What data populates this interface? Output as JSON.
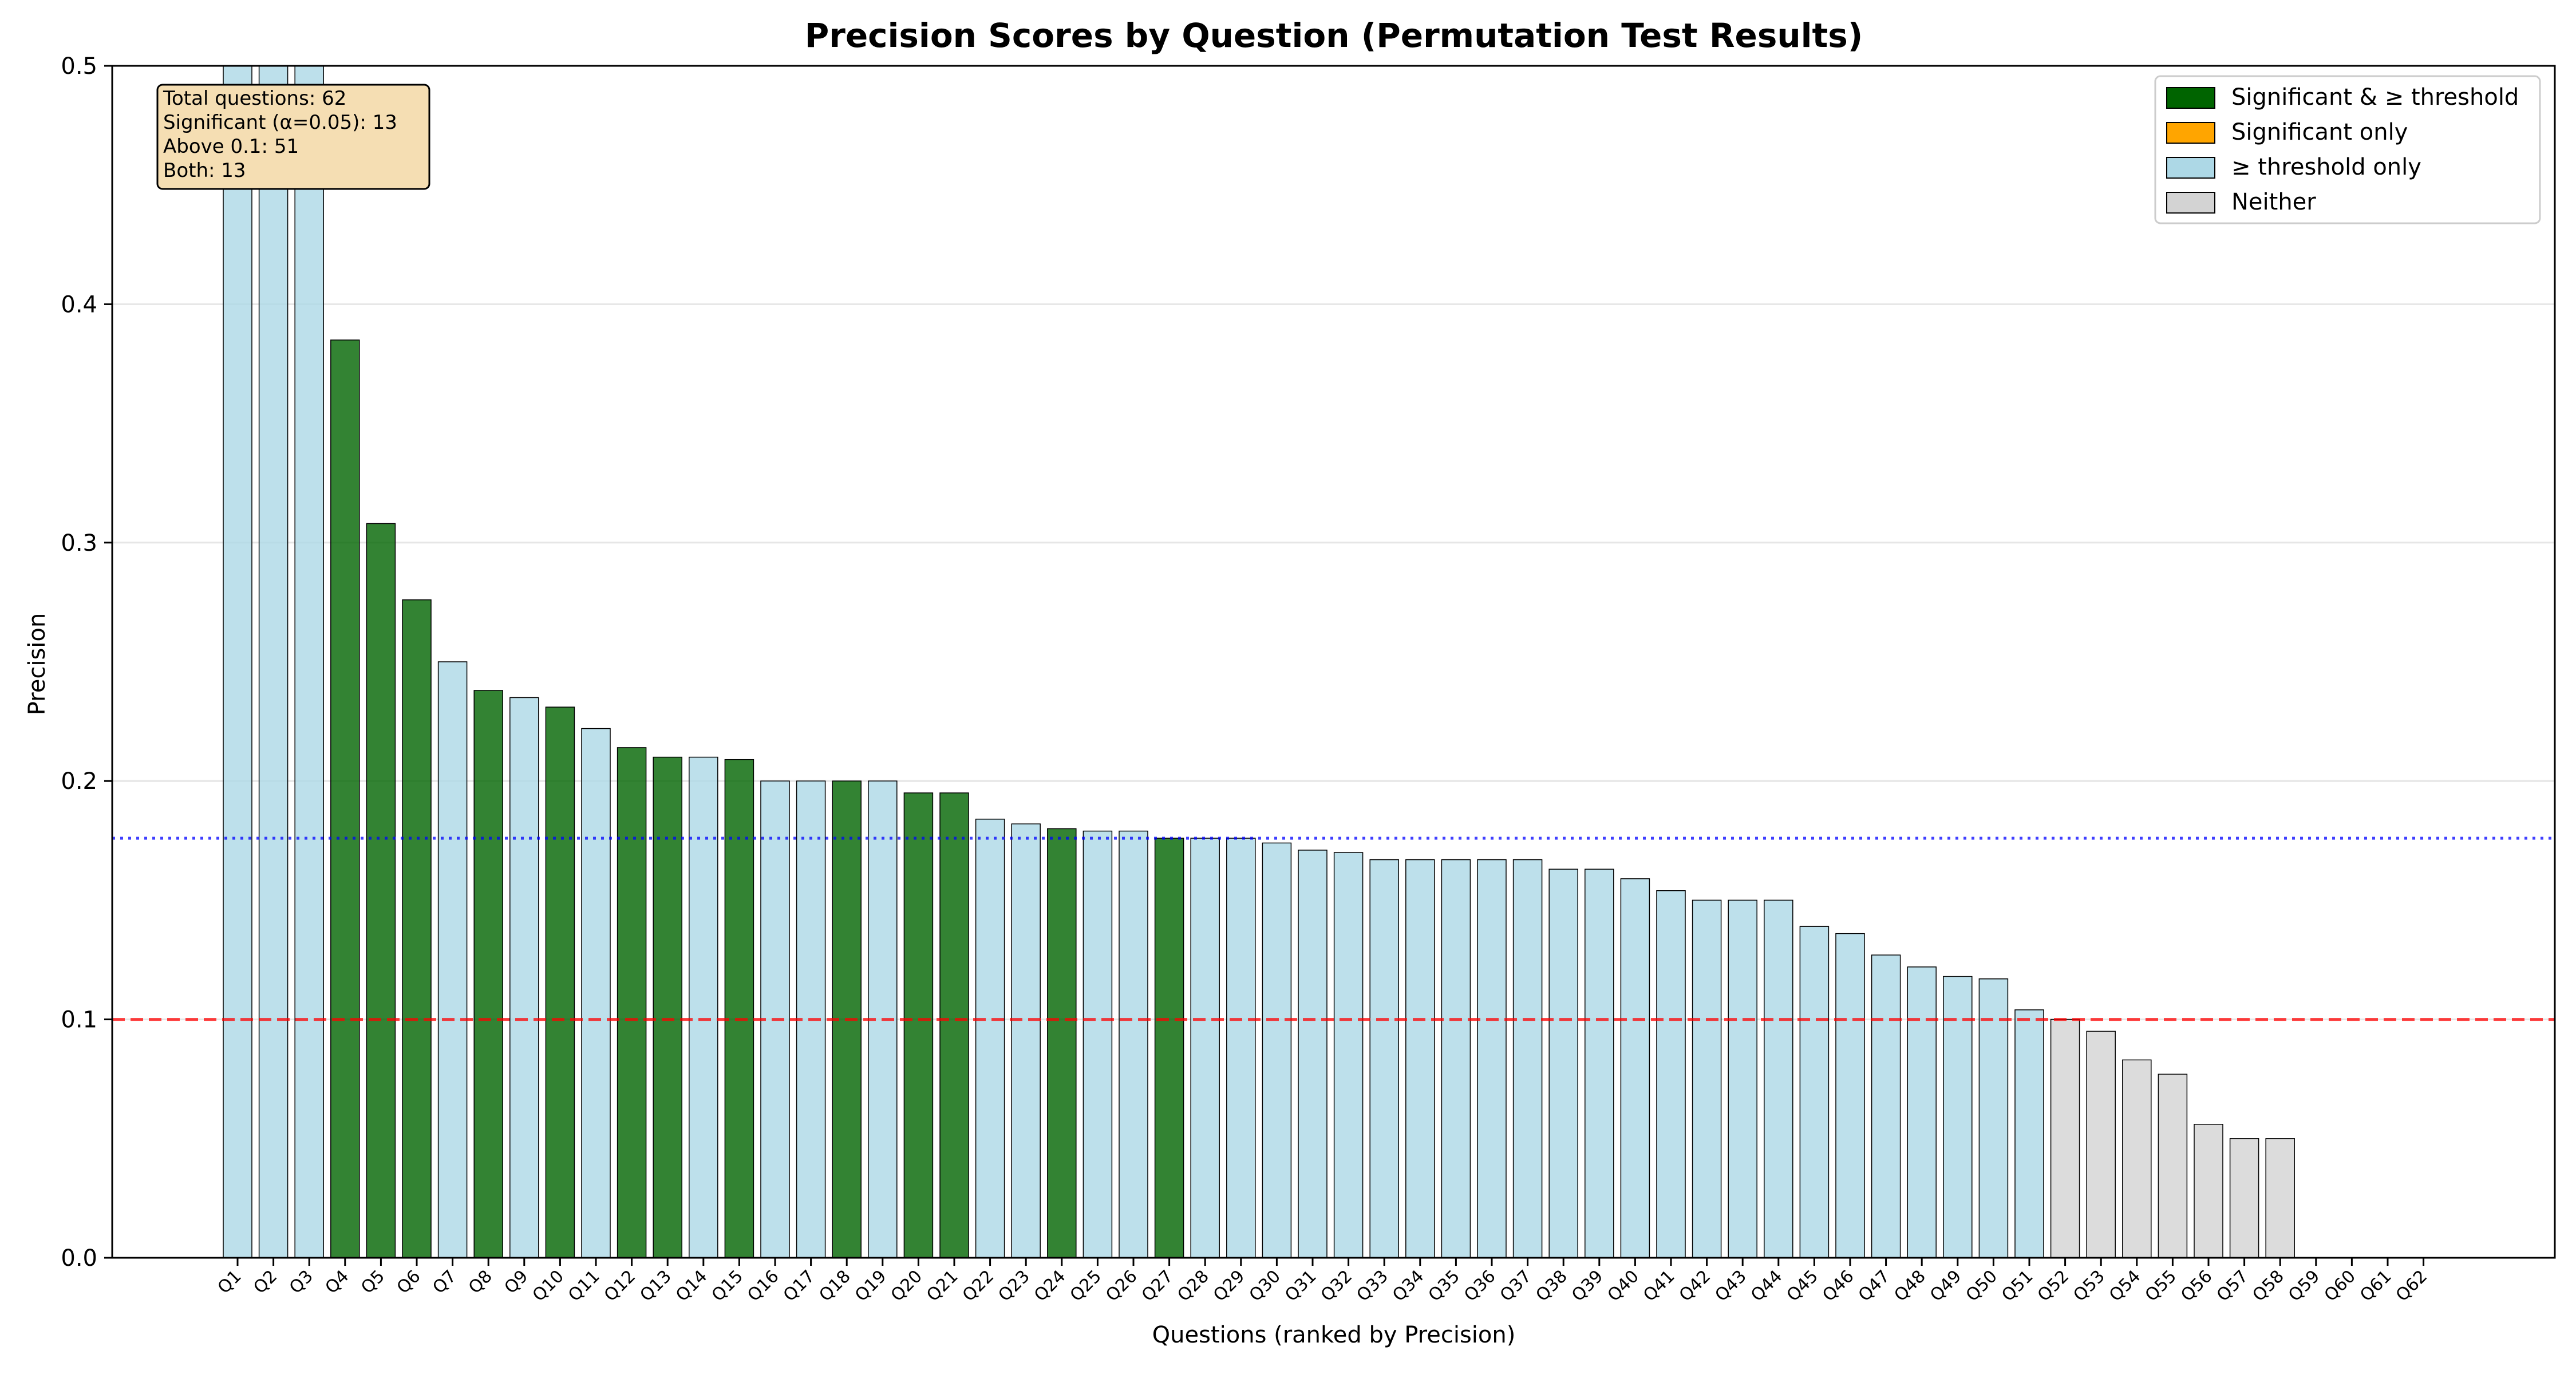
{
  "chart_data": {
    "type": "bar",
    "title": "Precision Scores by Question (Permutation Test Results)",
    "xlabel": "Questions (ranked by Precision)",
    "ylabel": "Precision",
    "ylim": [
      0,
      0.5
    ],
    "yticks": [
      "0.0",
      "0.1",
      "0.2",
      "0.3",
      "0.4",
      "0.5"
    ],
    "grid": "horizontal, light",
    "categories": [
      "Q1",
      "Q2",
      "Q3",
      "Q4",
      "Q5",
      "Q6",
      "Q7",
      "Q8",
      "Q9",
      "Q10",
      "Q11",
      "Q12",
      "Q13",
      "Q14",
      "Q15",
      "Q16",
      "Q17",
      "Q18",
      "Q19",
      "Q20",
      "Q21",
      "Q22",
      "Q23",
      "Q24",
      "Q25",
      "Q26",
      "Q27",
      "Q28",
      "Q29",
      "Q30",
      "Q31",
      "Q32",
      "Q33",
      "Q34",
      "Q35",
      "Q36",
      "Q37",
      "Q38",
      "Q39",
      "Q40",
      "Q41",
      "Q42",
      "Q43",
      "Q44",
      "Q45",
      "Q46",
      "Q47",
      "Q48",
      "Q49",
      "Q50",
      "Q51",
      "Q52",
      "Q53",
      "Q54",
      "Q55",
      "Q56",
      "Q57",
      "Q58",
      "Q59",
      "Q60",
      "Q61",
      "Q62"
    ],
    "values": [
      0.5,
      0.5,
      0.5,
      0.385,
      0.308,
      0.276,
      0.25,
      0.238,
      0.235,
      0.231,
      0.222,
      0.214,
      0.21,
      0.21,
      0.209,
      0.2,
      0.2,
      0.2,
      0.2,
      0.195,
      0.195,
      0.184,
      0.182,
      0.18,
      0.179,
      0.179,
      0.176,
      0.176,
      0.176,
      0.174,
      0.171,
      0.17,
      0.167,
      0.167,
      0.167,
      0.167,
      0.167,
      0.163,
      0.163,
      0.159,
      0.154,
      0.15,
      0.15,
      0.15,
      0.139,
      0.136,
      0.127,
      0.122,
      0.118,
      0.117,
      0.104,
      0.1,
      0.095,
      0.083,
      0.077,
      0.056,
      0.05,
      0.05,
      0,
      0,
      0,
      0
    ],
    "groups": [
      "T",
      "T",
      "T",
      "B",
      "B",
      "B",
      "T",
      "B",
      "T",
      "B",
      "T",
      "B",
      "B",
      "T",
      "B",
      "T",
      "T",
      "B",
      "T",
      "B",
      "B",
      "T",
      "T",
      "B",
      "T",
      "T",
      "B",
      "T",
      "T",
      "T",
      "T",
      "T",
      "T",
      "T",
      "T",
      "T",
      "T",
      "T",
      "T",
      "T",
      "T",
      "T",
      "T",
      "T",
      "T",
      "T",
      "T",
      "T",
      "T",
      "T",
      "T",
      "N",
      "N",
      "N",
      "N",
      "N",
      "N",
      "N",
      "N",
      "N",
      "N",
      "N"
    ],
    "group_colors": {
      "B": "#006400",
      "S": "#ffa500",
      "T": "#add8e6",
      "N": "#d3d3d3"
    },
    "lines": [
      {
        "label": "threshold",
        "value": 0.1,
        "color": "#ff0000",
        "style": "dashed"
      },
      {
        "label": "mean",
        "value": 0.176,
        "color": "#0000ff",
        "style": "dotted"
      }
    ],
    "legend": {
      "placement": "top-right",
      "items": [
        {
          "key": "B",
          "label": "Significant & ≥ threshold",
          "color": "#006400"
        },
        {
          "key": "S",
          "label": "Significant only",
          "color": "#ffa500"
        },
        {
          "key": "T",
          "label": "≥ threshold only",
          "color": "#add8e6"
        },
        {
          "key": "N",
          "label": "Neither",
          "color": "#d3d3d3"
        }
      ]
    },
    "stats_box": {
      "placement": "top-left",
      "lines": [
        "Total questions: 62",
        "Significant (α=0.05): 13",
        "Above 0.1: 51",
        "Both: 13"
      ]
    }
  }
}
